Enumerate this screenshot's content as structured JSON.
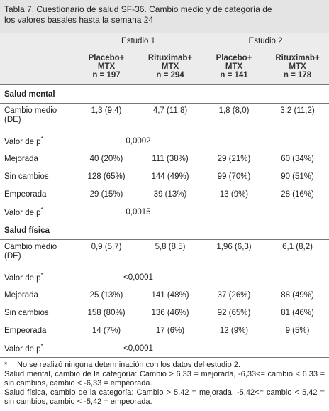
{
  "title_lines": [
    "Tabla 7. Cuestionario de salud SF-36. Cambio medio y de categoría de",
    "los valores basales hasta la semana 24"
  ],
  "studies": [
    "Estudio 1",
    "Estudio 2"
  ],
  "column_heads": [
    [
      "Placebo+",
      "MTX",
      "n = 197"
    ],
    [
      "Rituximab+",
      "MTX",
      "n = 294"
    ],
    [
      "Placebo+",
      "MTX",
      "n = 141"
    ],
    [
      "Rituximab+",
      "MTX",
      "n = 178"
    ]
  ],
  "sections": [
    {
      "title": "Salud mental",
      "rows": [
        {
          "label_lines": [
            "Cambio medio",
            "(DE)"
          ],
          "values": [
            "1,3 (9,4)",
            "4,7 (11,8)",
            "1,8 (8,0)",
            "3,2 (11,2)"
          ]
        },
        {
          "label": "Valor de p",
          "label_sup": "*",
          "p_value": "0,0002"
        },
        {
          "label": "Mejorada",
          "values": [
            "40 (20%)",
            "111 (38%)",
            "29 (21%)",
            "60 (34%)"
          ]
        },
        {
          "label": "Sin cambios",
          "values": [
            "128 (65%)",
            "144 (49%)",
            "99 (70%)",
            "90 (51%)"
          ]
        },
        {
          "label": "Empeorada",
          "values": [
            "29 (15%)",
            "39 (13%)",
            "13 (9%)",
            "28 (16%)"
          ]
        },
        {
          "label": "Valor de p",
          "label_sup": "*",
          "p_value": "0,0015"
        }
      ]
    },
    {
      "title": "Salud física",
      "rows": [
        {
          "label_lines": [
            "Cambio medio",
            "(DE)"
          ],
          "values": [
            "0,9 (5,7)",
            "5,8 (8,5)",
            "1,96 (6,3)",
            "6,1 (8,2)"
          ]
        },
        {
          "label": "Valor de p",
          "label_sup": "*",
          "p_value": "<0,0001"
        },
        {
          "label": "Mejorada",
          "values": [
            "25 (13%)",
            "141 (48%)",
            "37 (26%)",
            "88 (49%)"
          ]
        },
        {
          "label": "Sin cambios",
          "values": [
            "158 (80%)",
            "136 (46%)",
            "92 (65%)",
            "81 (46%)"
          ]
        },
        {
          "label": "Empeorada",
          "values": [
            "14 (7%)",
            "17 (6%)",
            "12 (9%)",
            "9 (5%)"
          ]
        },
        {
          "label": "Valor de p",
          "label_sup": "*",
          "p_value": "<0,0001"
        }
      ]
    }
  ],
  "footnotes": [
    {
      "marker": "*",
      "text": "No se realizó ninguna determinación con los datos del estudio 2."
    },
    {
      "text": "Salud mental, cambio de la categoría: Cambio > 6,33 = mejorada, -6,33<= cambio < 6,33 = sin cambios, cambio < -6,33 = empeorada."
    },
    {
      "text": "Salud física, cambio de la categoría: Cambio > 5,42 = mejorada, -5,42<= cambio < 5,42 = sin cambios, cambio < -5,42 = empeorada."
    }
  ]
}
